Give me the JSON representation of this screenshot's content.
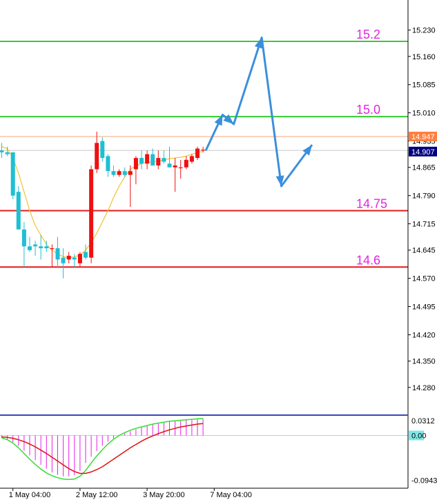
{
  "chart_data": [
    {
      "type": "candlestick",
      "title": "",
      "ylim": [
        14.21,
        15.31
      ],
      "y_ticks": [
        "15.230",
        "15.160",
        "15.085",
        "15.010",
        "14.935",
        "14.865",
        "14.790",
        "14.715",
        "14.645",
        "14.570",
        "14.495",
        "14.420",
        "14.350",
        "14.280"
      ],
      "y_tick_values": [
        15.23,
        15.16,
        15.085,
        15.01,
        14.935,
        14.865,
        14.79,
        14.715,
        14.645,
        14.57,
        14.495,
        14.42,
        14.35,
        14.28
      ],
      "x_labels": [
        "1 May 04:00",
        "2 May 12:00",
        "3 May 20:00",
        "7 May 04:00"
      ],
      "x_label_bar_index": [
        2,
        14,
        26,
        38
      ],
      "price_tags": [
        {
          "label": "14.947",
          "value": 14.947,
          "color": "#ff7f3f"
        },
        {
          "label": "14.907",
          "value": 14.907,
          "color": "#000080"
        }
      ],
      "levels": [
        {
          "label": "15.2",
          "value": 15.2,
          "color": "#33cc33",
          "label_color": "#e026e0"
        },
        {
          "label": "15.0",
          "value": 15.0,
          "color": "#33cc33",
          "label_color": "#e026e0"
        },
        {
          "label": "14.75",
          "value": 14.75,
          "color": "#e01b1b",
          "label_color": "#e026e0"
        },
        {
          "label": "14.6",
          "value": 14.6,
          "color": "#e01b1b",
          "label_color": "#e026e0"
        }
      ],
      "ask_line": 14.947,
      "bid_line": 14.91,
      "bull_color": "#ee1111",
      "bear_color": "#1fbfd2",
      "ma_color": "#f2c230",
      "candles": [
        {
          "o": 14.91,
          "h": 14.93,
          "l": 14.89,
          "c": 14.905
        },
        {
          "o": 14.905,
          "h": 14.92,
          "l": 14.895,
          "c": 14.9
        },
        {
          "o": 14.905,
          "h": 14.905,
          "l": 14.78,
          "c": 14.79
        },
        {
          "o": 14.8,
          "h": 14.815,
          "l": 14.7,
          "c": 14.7
        },
        {
          "o": 14.7,
          "h": 14.72,
          "l": 14.6,
          "c": 14.655
        },
        {
          "o": 14.655,
          "h": 14.68,
          "l": 14.64,
          "c": 14.645
        },
        {
          "o": 14.66,
          "h": 14.67,
          "l": 14.63,
          "c": 14.655
        },
        {
          "o": 14.655,
          "h": 14.685,
          "l": 14.62,
          "c": 14.65
        },
        {
          "o": 14.655,
          "h": 14.67,
          "l": 14.64,
          "c": 14.65
        },
        {
          "o": 14.65,
          "h": 14.66,
          "l": 14.6,
          "c": 14.65
        },
        {
          "o": 14.65,
          "h": 14.68,
          "l": 14.6,
          "c": 14.62
        },
        {
          "o": 14.625,
          "h": 14.65,
          "l": 14.57,
          "c": 14.61
        },
        {
          "o": 14.62,
          "h": 14.64,
          "l": 14.61,
          "c": 14.63
        },
        {
          "o": 14.625,
          "h": 14.635,
          "l": 14.6,
          "c": 14.62
        },
        {
          "o": 14.61,
          "h": 14.64,
          "l": 14.6,
          "c": 14.635
        },
        {
          "o": 14.64,
          "h": 14.66,
          "l": 14.62,
          "c": 14.625
        },
        {
          "o": 14.625,
          "h": 14.87,
          "l": 14.61,
          "c": 14.86
        },
        {
          "o": 14.86,
          "h": 14.96,
          "l": 14.85,
          "c": 14.93
        },
        {
          "o": 14.935,
          "h": 14.945,
          "l": 14.88,
          "c": 14.89
        },
        {
          "o": 14.895,
          "h": 14.9,
          "l": 14.84,
          "c": 14.855
        },
        {
          "o": 14.855,
          "h": 14.87,
          "l": 14.84,
          "c": 14.845
        },
        {
          "o": 14.845,
          "h": 14.86,
          "l": 14.84,
          "c": 14.855
        },
        {
          "o": 14.855,
          "h": 14.865,
          "l": 14.84,
          "c": 14.845
        },
        {
          "o": 14.845,
          "h": 14.87,
          "l": 14.76,
          "c": 14.855
        },
        {
          "o": 14.86,
          "h": 14.895,
          "l": 14.82,
          "c": 14.89
        },
        {
          "o": 14.89,
          "h": 14.91,
          "l": 14.86,
          "c": 14.875
        },
        {
          "o": 14.875,
          "h": 14.91,
          "l": 14.86,
          "c": 14.9
        },
        {
          "o": 14.9,
          "h": 14.915,
          "l": 14.87,
          "c": 14.87
        },
        {
          "o": 14.87,
          "h": 14.91,
          "l": 14.86,
          "c": 14.89
        },
        {
          "o": 14.89,
          "h": 14.91,
          "l": 14.875,
          "c": 14.88
        },
        {
          "o": 14.875,
          "h": 14.92,
          "l": 14.865,
          "c": 14.865
        },
        {
          "o": 14.865,
          "h": 14.89,
          "l": 14.8,
          "c": 14.87
        },
        {
          "o": 14.865,
          "h": 14.885,
          "l": 14.835,
          "c": 14.865
        },
        {
          "o": 14.865,
          "h": 14.895,
          "l": 14.86,
          "c": 14.885
        },
        {
          "o": 14.88,
          "h": 14.9,
          "l": 14.875,
          "c": 14.895
        },
        {
          "o": 14.89,
          "h": 14.92,
          "l": 14.885,
          "c": 14.915
        },
        {
          "o": 14.91,
          "h": 14.92,
          "l": 14.905,
          "c": 14.912
        }
      ],
      "moving_average": [
        14.92,
        14.915,
        14.89,
        14.85,
        14.8,
        14.75,
        14.71,
        14.685,
        14.66,
        14.645,
        14.635,
        14.628,
        14.624,
        14.627,
        14.632,
        14.645,
        14.665,
        14.69,
        14.72,
        14.75,
        14.785,
        14.815,
        14.84,
        14.86,
        14.87,
        14.875,
        14.878,
        14.88,
        14.882,
        14.885,
        14.888,
        14.89,
        14.892,
        14.895,
        14.9,
        14.905,
        14.907
      ],
      "projection_path": [
        [
          36.5,
          14.91
        ],
        [
          39.5,
          15.005
        ],
        [
          41.5,
          14.98
        ],
        [
          46.5,
          15.21
        ],
        [
          50.0,
          14.815
        ],
        [
          55.5,
          14.925
        ]
      ]
    },
    {
      "type": "bar+line",
      "title": "",
      "ylim": [
        -0.104,
        0.04
      ],
      "y_ticks": [
        "0.0312",
        "0.00",
        "-0.0943"
      ],
      "y_tick_values": [
        0.0312,
        0.0,
        -0.0943
      ],
      "histogram_color": "#e61ee6",
      "fast_line_color": "#33dd33",
      "signal_line_color": "#dd1111",
      "histogram": [
        -0.005,
        -0.008,
        -0.014,
        -0.022,
        -0.032,
        -0.042,
        -0.052,
        -0.062,
        -0.07,
        -0.078,
        -0.083,
        -0.086,
        -0.086,
        -0.084,
        -0.075,
        -0.058,
        -0.045,
        -0.033,
        -0.022,
        -0.013,
        -0.006,
        -0.001,
        0.004,
        0.009,
        0.013,
        0.017,
        0.02,
        0.023,
        0.025,
        0.027,
        0.029,
        0.03,
        0.031,
        0.032,
        0.033,
        0.034,
        0.035
      ],
      "fast_line": [
        -0.005,
        -0.009,
        -0.016,
        -0.026,
        -0.038,
        -0.05,
        -0.061,
        -0.071,
        -0.079,
        -0.085,
        -0.089,
        -0.092,
        -0.093,
        -0.092,
        -0.086,
        -0.074,
        -0.058,
        -0.043,
        -0.03,
        -0.018,
        -0.008,
        0.0,
        0.006,
        0.011,
        0.015,
        0.018,
        0.021,
        0.024,
        0.026,
        0.028,
        0.03,
        0.031,
        0.032,
        0.033,
        0.034,
        0.035,
        0.036
      ],
      "signal_line": [
        -0.003,
        -0.004,
        -0.006,
        -0.009,
        -0.013,
        -0.018,
        -0.024,
        -0.031,
        -0.038,
        -0.046,
        -0.054,
        -0.062,
        -0.07,
        -0.076,
        -0.08,
        -0.08,
        -0.077,
        -0.072,
        -0.066,
        -0.058,
        -0.05,
        -0.042,
        -0.034,
        -0.026,
        -0.019,
        -0.012,
        -0.006,
        -0.001,
        0.004,
        0.008,
        0.012,
        0.015,
        0.018,
        0.02,
        0.022,
        0.024,
        0.025
      ]
    }
  ]
}
